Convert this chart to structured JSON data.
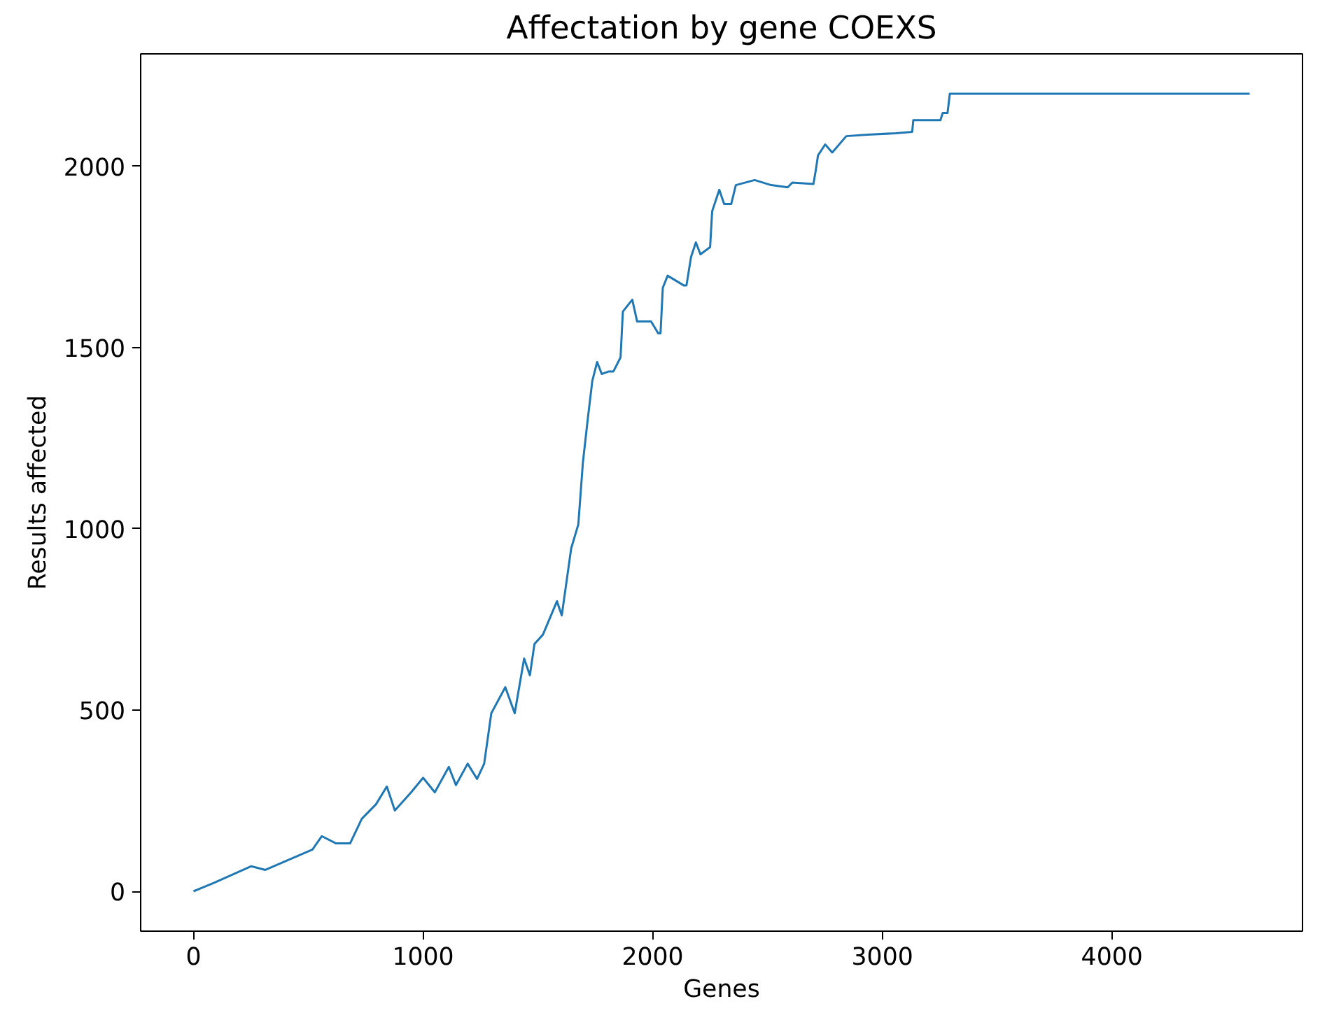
{
  "chart_data": {
    "type": "line",
    "title": "Affectation by gene COEXS",
    "xlabel": "Genes",
    "ylabel": "Results affected",
    "xlim": [
      -230,
      4830
    ],
    "ylim": [
      -110,
      2310
    ],
    "xticks": [
      0,
      1000,
      2000,
      3000,
      4000
    ],
    "yticks": [
      0,
      500,
      1000,
      1500,
      2000
    ],
    "grid": false,
    "series": [
      {
        "color": "#1f77b4",
        "x": [
          0,
          88,
          252,
          313,
          518,
          559,
          621,
          682,
          733,
          795,
          842,
          877,
          948,
          1000,
          1051,
          1112,
          1143,
          1194,
          1235,
          1266,
          1297,
          1358,
          1399,
          1440,
          1465,
          1485,
          1522,
          1583,
          1604,
          1645,
          1676,
          1696,
          1717,
          1737,
          1758,
          1778,
          1809,
          1829,
          1860,
          1870,
          1911,
          1932,
          1993,
          2024,
          2034,
          2044,
          2065,
          2136,
          2147,
          2167,
          2188,
          2208,
          2250,
          2259,
          2290,
          2311,
          2342,
          2362,
          2444,
          2516,
          2588,
          2608,
          2700,
          2710,
          2720,
          2751,
          2782,
          2843,
          2935,
          3058,
          3130,
          3135,
          3253,
          3263,
          3284,
          3294,
          4600
        ],
        "values": [
          0,
          23,
          69,
          59,
          115,
          152,
          132,
          132,
          200,
          240,
          289,
          223,
          273,
          313,
          273,
          343,
          293,
          352,
          310,
          352,
          491,
          563,
          491,
          642,
          596,
          682,
          708,
          800,
          761,
          946,
          1012,
          1183,
          1302,
          1408,
          1460,
          1427,
          1434,
          1434,
          1473,
          1599,
          1632,
          1572,
          1572,
          1539,
          1539,
          1665,
          1698,
          1671,
          1671,
          1750,
          1790,
          1757,
          1777,
          1876,
          1935,
          1896,
          1896,
          1948,
          1962,
          1948,
          1942,
          1955,
          1951,
          1988,
          2030,
          2060,
          2038,
          2083,
          2087,
          2091,
          2095,
          2127,
          2127,
          2147,
          2147,
          2200,
          2200
        ]
      }
    ]
  }
}
